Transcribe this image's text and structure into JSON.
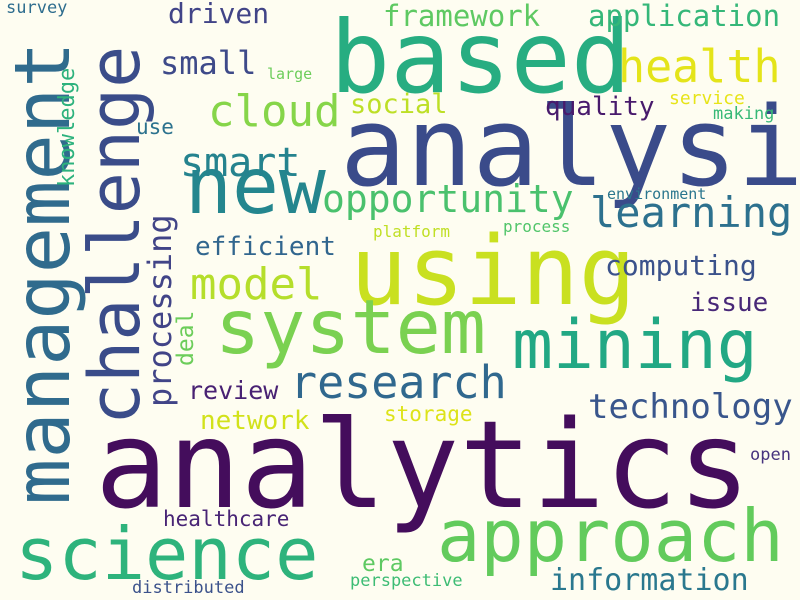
{
  "background": "#fefdf1",
  "words": [
    {
      "text": "analytics",
      "color": "#440d5c",
      "rotate": false
    },
    {
      "text": "analysis",
      "color": "#3a4b8a",
      "rotate": false
    },
    {
      "text": "based",
      "color": "#27ad81",
      "rotate": false
    },
    {
      "text": "using",
      "color": "#c9e020",
      "rotate": false
    },
    {
      "text": "system",
      "color": "#7ad151",
      "rotate": false
    },
    {
      "text": "management",
      "color": "#306b8d",
      "rotate": true
    },
    {
      "text": "challenge",
      "color": "#3a4c89",
      "rotate": true
    },
    {
      "text": "science",
      "color": "#2eb37c",
      "rotate": false
    },
    {
      "text": "approach",
      "color": "#62cb5c",
      "rotate": false
    },
    {
      "text": "mining",
      "color": "#22a884",
      "rotate": false
    },
    {
      "text": "new",
      "color": "#24868e",
      "rotate": false
    },
    {
      "text": "research",
      "color": "#30688e",
      "rotate": false
    },
    {
      "text": "health",
      "color": "#e4e419",
      "rotate": false
    },
    {
      "text": "learning",
      "color": "#2d718e",
      "rotate": false
    },
    {
      "text": "opportunity",
      "color": "#4ac16d",
      "rotate": false
    },
    {
      "text": "technology",
      "color": "#39568c",
      "rotate": false
    },
    {
      "text": "cloud",
      "color": "#86d549",
      "rotate": false
    },
    {
      "text": "smart",
      "color": "#25838e",
      "rotate": false
    },
    {
      "text": "model",
      "color": "#b5de2b",
      "rotate": false
    },
    {
      "text": "information",
      "color": "#2a788e",
      "rotate": false
    },
    {
      "text": "processing",
      "color": "#414487",
      "rotate": true
    },
    {
      "text": "framework",
      "color": "#5ec962",
      "rotate": false
    },
    {
      "text": "application",
      "color": "#35b779",
      "rotate": false
    },
    {
      "text": "computing",
      "color": "#3b528b",
      "rotate": false
    },
    {
      "text": "quality",
      "color": "#481a6c",
      "rotate": false
    },
    {
      "text": "efficient",
      "color": "#31668e",
      "rotate": false
    },
    {
      "text": "small",
      "color": "#3e4a89",
      "rotate": false
    },
    {
      "text": "driven",
      "color": "#414487",
      "rotate": false
    },
    {
      "text": "social",
      "color": "#bddf26",
      "rotate": false
    },
    {
      "text": "issue",
      "color": "#482878",
      "rotate": false
    },
    {
      "text": "review",
      "color": "#482173",
      "rotate": false
    },
    {
      "text": "network",
      "color": "#d2e21b",
      "rotate": false
    },
    {
      "text": "knowledge",
      "color": "#2db27d",
      "rotate": true
    },
    {
      "text": "deal",
      "color": "#6ccd5a",
      "rotate": true
    },
    {
      "text": "healthcare",
      "color": "#482475",
      "rotate": false
    },
    {
      "text": "era",
      "color": "#5ec962",
      "rotate": false
    },
    {
      "text": "storage",
      "color": "#dde318",
      "rotate": false
    },
    {
      "text": "use",
      "color": "#2c728e",
      "rotate": false
    },
    {
      "text": "service",
      "color": "#e7e419",
      "rotate": false
    },
    {
      "text": "making",
      "color": "#38b977",
      "rotate": false
    },
    {
      "text": "environment",
      "color": "#2a768e",
      "rotate": false
    },
    {
      "text": "platform",
      "color": "#c0df25",
      "rotate": false
    },
    {
      "text": "process",
      "color": "#51c56a",
      "rotate": false
    },
    {
      "text": "perspective",
      "color": "#3dbc74",
      "rotate": false
    },
    {
      "text": "distributed",
      "color": "#3b528b",
      "rotate": false
    },
    {
      "text": "large",
      "color": "#6ccd5a",
      "rotate": false
    },
    {
      "text": "survey",
      "color": "#2e6d8e",
      "rotate": false
    },
    {
      "text": "open",
      "color": "#46337e",
      "rotate": false
    }
  ]
}
